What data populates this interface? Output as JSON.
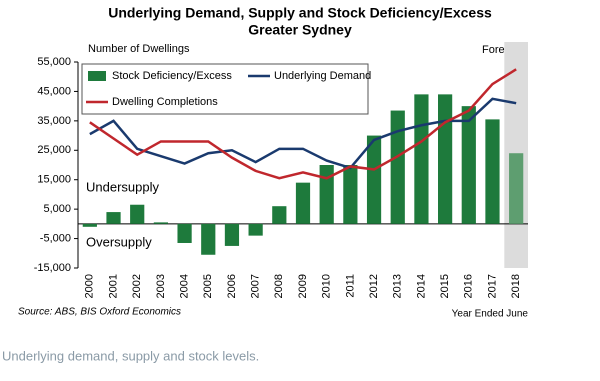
{
  "chart_data": {
    "type": "bar",
    "title": "Underlying Demand, Supply and Stock Deficiency/Excess",
    "subtitle": "Greater Sydney",
    "y_label": "Number of Dwellings",
    "x_label": "Year Ended June",
    "source": "Source: ABS, BIS Oxford Economics",
    "annotations": [
      "Undersupply",
      "Oversupply",
      "Forecast"
    ],
    "caption": "Underlying demand, supply and stock levels.",
    "categories": [
      "2000",
      "2001",
      "2002",
      "2003",
      "2004",
      "2005",
      "2006",
      "2007",
      "2008",
      "2009",
      "2010",
      "2011",
      "2012",
      "2013",
      "2014",
      "2015",
      "2016",
      "2017",
      "2018"
    ],
    "series": [
      {
        "name": "Stock Deficiency/Excess",
        "type": "bar",
        "color": "#1e7a3c",
        "forecast_color": "#5e9e70",
        "values": [
          -1000,
          4000,
          6500,
          500,
          -6500,
          -10500,
          -7500,
          -4000,
          6000,
          14000,
          20000,
          20000,
          30000,
          38500,
          44000,
          44000,
          40000,
          35500,
          24000
        ]
      },
      {
        "name": "Underlying Demand",
        "type": "line",
        "color": "#1a3a6e",
        "values": [
          30500,
          35000,
          25500,
          23000,
          20500,
          24000,
          25000,
          21000,
          25500,
          25500,
          21500,
          19000,
          28500,
          31500,
          33500,
          35000,
          35000,
          42500,
          41000
        ]
      },
      {
        "name": "Dwelling Completions",
        "type": "line",
        "color": "#c0272d",
        "values": [
          34500,
          29000,
          23500,
          28000,
          28000,
          28000,
          22500,
          18000,
          15500,
          17500,
          15500,
          19500,
          18500,
          23000,
          28000,
          34500,
          38500,
          47500,
          52500
        ]
      }
    ],
    "ylim": [
      -15000,
      55000
    ],
    "yticks": [
      {
        "value": 55000,
        "label": "55,000"
      },
      {
        "value": 45000,
        "label": "45,000"
      },
      {
        "value": 35000,
        "label": "35,000"
      },
      {
        "value": 25000,
        "label": "25,000"
      },
      {
        "value": 15000,
        "label": "15,000"
      },
      {
        "value": 5000,
        "label": "5,000"
      },
      {
        "value": -5000,
        "label": "-5,000"
      },
      {
        "value": -15000,
        "label": "-15,000"
      }
    ],
    "grid": false
  }
}
